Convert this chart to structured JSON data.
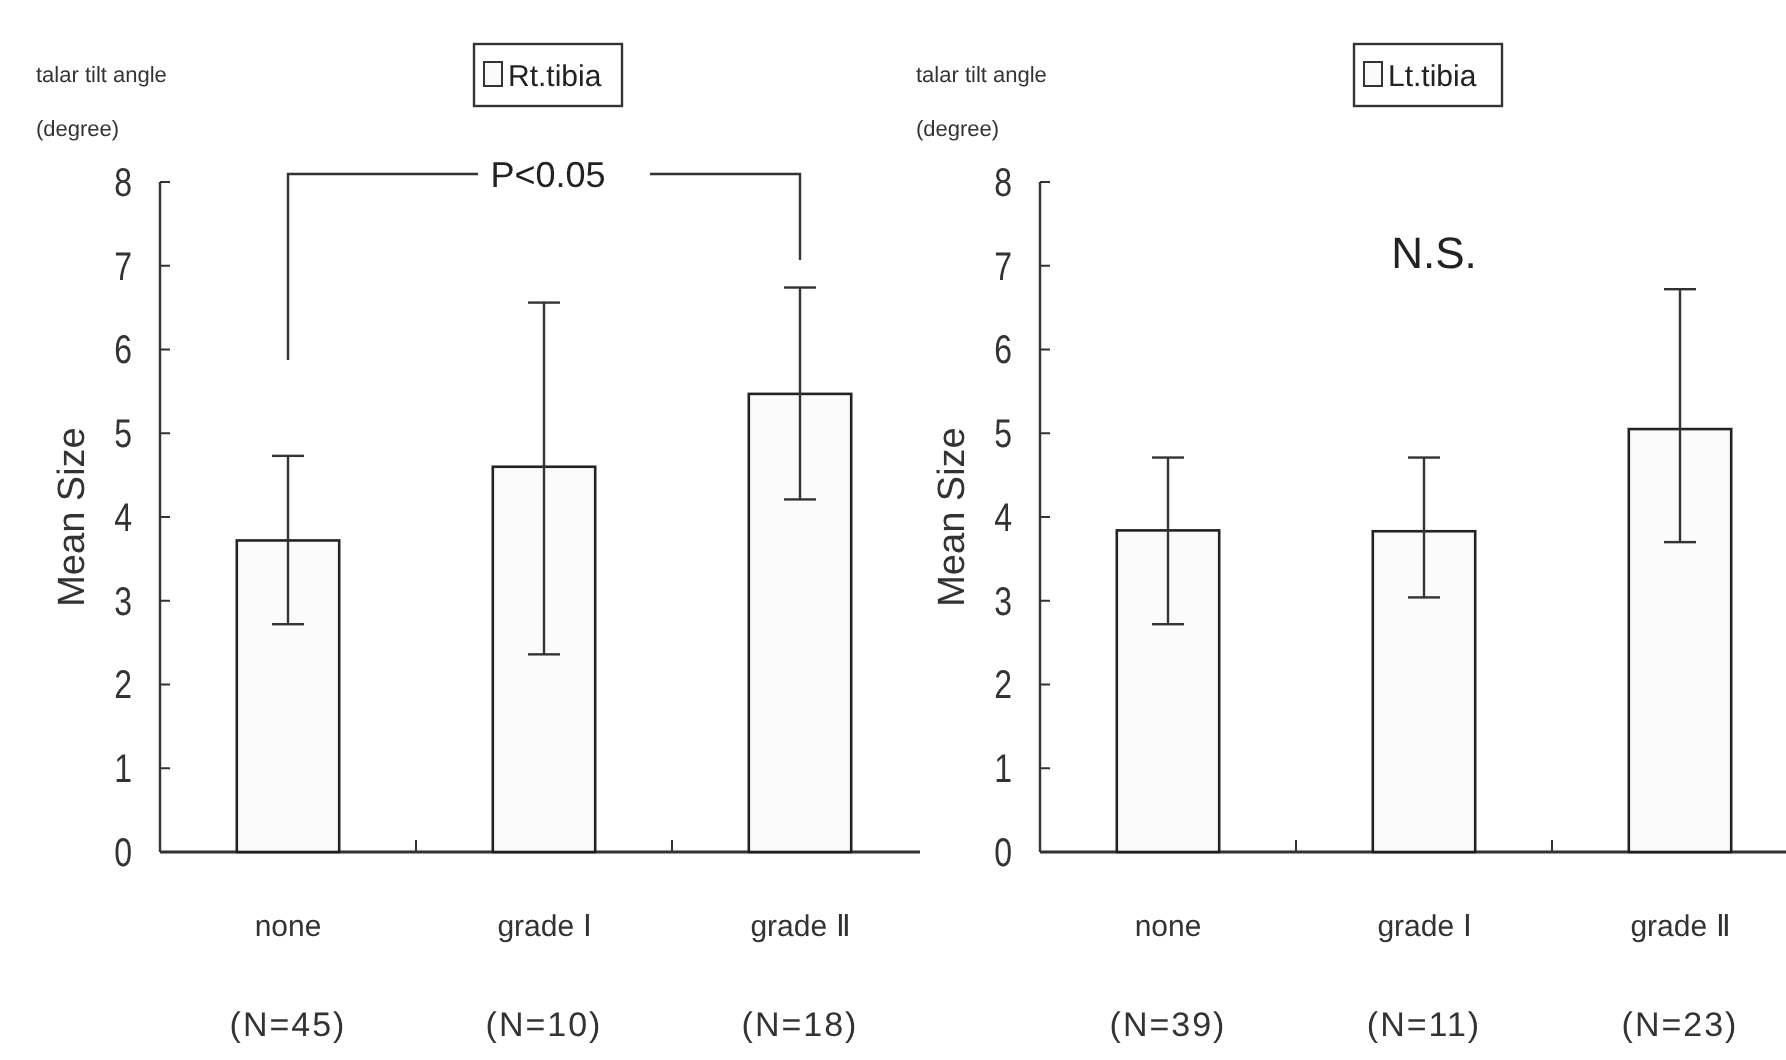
{
  "chart_data": [
    {
      "type": "bar",
      "ylabel": "Mean Size",
      "categories": [
        "none\n(N=45)",
        "grade Ⅰ\n(N=10)",
        "grade Ⅱ\n(N=18)"
      ],
      "series": [
        {
          "name": "Rt.tibia",
          "color": "#fafafa",
          "values": [
            3.72,
            4.6,
            5.47
          ],
          "errors": [
            [
              2.72,
              4.73
            ],
            [
              2.36,
              6.56
            ],
            [
              4.21,
              6.74
            ]
          ]
        }
      ],
      "ylim": [
        0,
        8
      ],
      "yticks": [
        0,
        1,
        2,
        3,
        4,
        5,
        6,
        7,
        8
      ],
      "legend": "top",
      "grid": false,
      "annotations": [
        "talar tilt angle",
        "(degree)",
        "P<0.05"
      ]
    },
    {
      "type": "bar",
      "ylabel": "Mean Size",
      "categories": [
        "none\n(N=39)",
        "grade Ⅰ\n(N=11)",
        "grade Ⅱ\n(N=23)"
      ],
      "series": [
        {
          "name": "Lt.tibia",
          "color": "#fafafa",
          "values": [
            3.84,
            3.83,
            5.05
          ],
          "errors": [
            [
              2.72,
              4.71
            ],
            [
              3.04,
              4.71
            ],
            [
              3.7,
              6.72
            ]
          ]
        }
      ],
      "ylim": [
        0,
        8
      ],
      "yticks": [
        0,
        1,
        2,
        3,
        4,
        5,
        6,
        7,
        8
      ],
      "legend": "top",
      "grid": false,
      "annotations": [
        "talar tilt angle",
        "(degree)",
        "N.S."
      ]
    }
  ]
}
